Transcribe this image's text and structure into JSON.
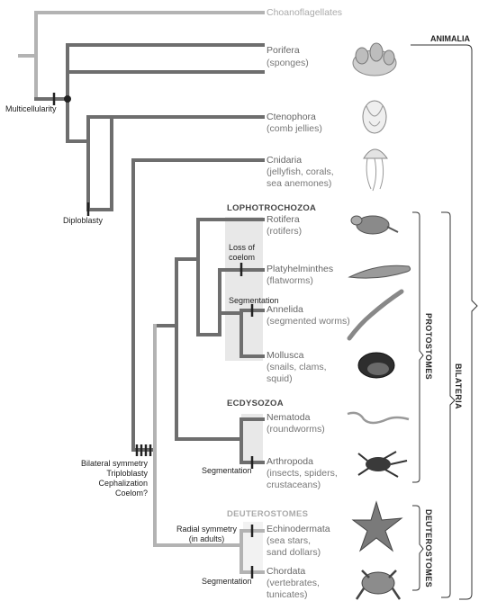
{
  "colors": {
    "branch": "#6e6e6e",
    "branch_light": "#b3b3b3",
    "shade": "#e8e8e8",
    "bracket": "#333333"
  },
  "taxa": [
    {
      "name": "Choanoflagellates",
      "common": ""
    },
    {
      "name": "Porifera",
      "common": "(sponges)",
      "icon": "sponge-icon"
    },
    {
      "name": "Ctenophora",
      "common": "(comb jellies)",
      "icon": "comb-jelly-icon"
    },
    {
      "name": "Cnidaria",
      "common": "(jellyfish, corals,\nsea anemones)",
      "icon": "jellyfish-icon"
    },
    {
      "name": "Rotifera",
      "common": "(rotifers)",
      "icon": "rotifer-icon"
    },
    {
      "name": "Platyhelminthes",
      "common": "(flatworms)",
      "icon": "flatworm-icon"
    },
    {
      "name": "Annelida",
      "common": "(segmented worms)",
      "icon": "earthworm-icon"
    },
    {
      "name": "Mollusca",
      "common": "(snails, clams,\nsquid)",
      "icon": "clam-icon"
    },
    {
      "name": "Nematoda",
      "common": "(roundworms)",
      "icon": "roundworm-icon"
    },
    {
      "name": "Arthropoda",
      "common": "(insects, spiders,\ncrustaceans)",
      "icon": "insect-icon"
    },
    {
      "name": "Echinodermata",
      "common": "(sea stars,\nsand dollars)",
      "icon": "sea-star-icon"
    },
    {
      "name": "Chordata",
      "common": "(vertebrates,\ntunicates)",
      "icon": "frog-icon"
    }
  ],
  "groups": {
    "lophotrochozoa": "LOPHOTROCHOZOA",
    "ecdysozoa": "ECDYSOZOA",
    "deuterostomes": "DEUTEROSTOMES"
  },
  "characters": {
    "multicellularity": "Multicellularity",
    "diploblasty": "Diploblasty",
    "bilateral": "Bilateral symmetry\nTriploblasty\nCephalization\nCoelom?",
    "loss_coelom": "Loss of\ncoelom",
    "segmentation_annelida": "Segmentation",
    "segmentation_arthropoda": "Segmentation",
    "radial": "Radial symmetry\n(in adults)",
    "segmentation_chordata": "Segmentation"
  },
  "brackets": {
    "animalia": "ANIMALIA",
    "bilateria": "BILATERIA",
    "protostomes": "PROTOSTOMES",
    "deuterostomes": "DEUTEROSTOMES"
  }
}
